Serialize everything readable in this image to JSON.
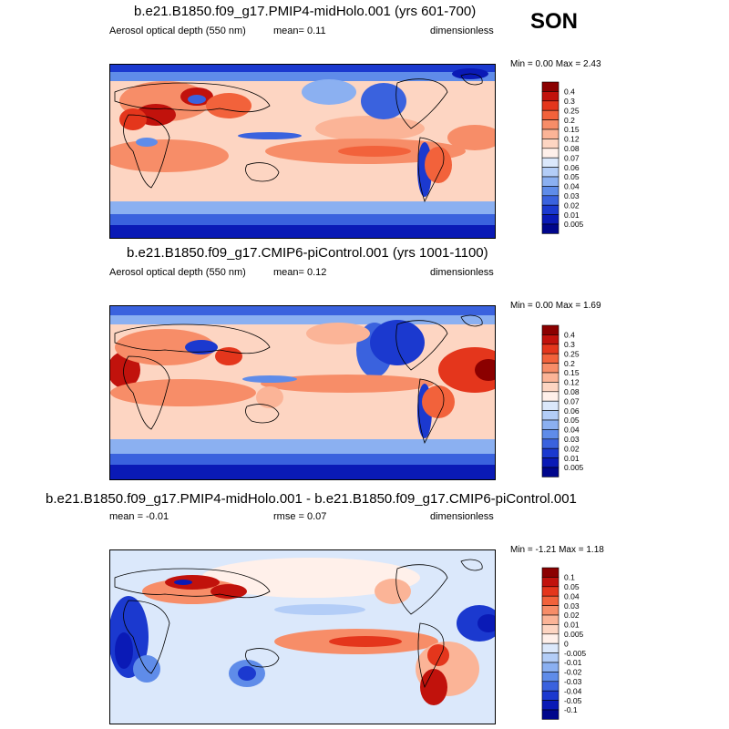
{
  "season": "SON",
  "panels": [
    {
      "title": "b.e21.B1850.f09_g17.PMIP4-midHolo.001 (yrs 601-700)",
      "left_label": "Aerosol optical depth (550 nm)",
      "center_label": "mean=  0.11",
      "right_label": "dimensionless",
      "minmax": "Min =  0.00 Max =  2.43",
      "colorbar": {
        "labels": [
          "0.4",
          "0.3",
          "0.25",
          "0.2",
          "0.15",
          "0.12",
          "0.08",
          "0.07",
          "0.06",
          "0.05",
          "0.04",
          "0.03",
          "0.02",
          "0.01",
          "0.005"
        ],
        "colors": [
          "#8b0000",
          "#c1120c",
          "#e4361c",
          "#f2623b",
          "#f78d68",
          "#fbb497",
          "#fdd5c2",
          "#fff0ea",
          "#dbe8fb",
          "#b3cdf7",
          "#8bb0f1",
          "#5f8ce9",
          "#3a62de",
          "#1b39cf",
          "#0a1ab6",
          "#00068c"
        ]
      }
    },
    {
      "title": "b.e21.B1850.f09_g17.CMIP6-piControl.001 (yrs 1001-1100)",
      "left_label": "Aerosol optical depth (550 nm)",
      "center_label": "mean=  0.12",
      "right_label": "dimensionless",
      "minmax": "Min =  0.00 Max =  1.69",
      "colorbar": {
        "labels": [
          "0.4",
          "0.3",
          "0.25",
          "0.2",
          "0.15",
          "0.12",
          "0.08",
          "0.07",
          "0.06",
          "0.05",
          "0.04",
          "0.03",
          "0.02",
          "0.01",
          "0.005"
        ],
        "colors": [
          "#8b0000",
          "#c1120c",
          "#e4361c",
          "#f2623b",
          "#f78d68",
          "#fbb497",
          "#fdd5c2",
          "#fff0ea",
          "#dbe8fb",
          "#b3cdf7",
          "#8bb0f1",
          "#5f8ce9",
          "#3a62de",
          "#1b39cf",
          "#0a1ab6",
          "#00068c"
        ]
      }
    },
    {
      "title": "b.e21.B1850.f09_g17.PMIP4-midHolo.001 - b.e21.B1850.f09_g17.CMIP6-piControl.001",
      "left_label": "mean =  -0.01",
      "center_label": "rmse =  0.07",
      "right_label": "dimensionless",
      "minmax": "Min =  -1.21 Max =  1.18",
      "colorbar": {
        "labels": [
          "0.1",
          "0.05",
          "0.04",
          "0.03",
          "0.02",
          "0.01",
          "0.005",
          "0",
          "-0.005",
          "-0.01",
          "-0.02",
          "-0.03",
          "-0.04",
          "-0.05",
          "-0.1"
        ],
        "colors": [
          "#8b0000",
          "#c1120c",
          "#e4361c",
          "#f2623b",
          "#f78d68",
          "#fbb497",
          "#fdd5c2",
          "#fff0ea",
          "#dbe8fb",
          "#b3cdf7",
          "#8bb0f1",
          "#5f8ce9",
          "#3a62de",
          "#1b39cf",
          "#0a1ab6",
          "#00068c"
        ]
      }
    }
  ],
  "chart_data": [
    {
      "type": "heatmap",
      "title": "b.e21.B1850.f09_g17.PMIP4-midHolo.001 (yrs 601-700)",
      "variable": "Aerosol optical depth (550 nm)",
      "units": "dimensionless",
      "season": "SON",
      "mean": 0.11,
      "min": 0.0,
      "max": 2.43,
      "levels": [
        0.005,
        0.01,
        0.02,
        0.03,
        0.04,
        0.05,
        0.06,
        0.07,
        0.08,
        0.12,
        0.15,
        0.2,
        0.25,
        0.3,
        0.4
      ]
    },
    {
      "type": "heatmap",
      "title": "b.e21.B1850.f09_g17.CMIP6-piControl.001 (yrs 1001-1100)",
      "variable": "Aerosol optical depth (550 nm)",
      "units": "dimensionless",
      "season": "SON",
      "mean": 0.12,
      "min": 0.0,
      "max": 1.69,
      "levels": [
        0.005,
        0.01,
        0.02,
        0.03,
        0.04,
        0.05,
        0.06,
        0.07,
        0.08,
        0.12,
        0.15,
        0.2,
        0.25,
        0.3,
        0.4
      ]
    },
    {
      "type": "heatmap",
      "title": "b.e21.B1850.f09_g17.PMIP4-midHolo.001 - b.e21.B1850.f09_g17.CMIP6-piControl.001",
      "units": "dimensionless",
      "season": "SON",
      "mean": -0.01,
      "rmse": 0.07,
      "min": -1.21,
      "max": 1.18,
      "levels": [
        -0.1,
        -0.05,
        -0.04,
        -0.03,
        -0.02,
        -0.01,
        -0.005,
        0,
        0.005,
        0.01,
        0.02,
        0.03,
        0.04,
        0.05,
        0.1
      ]
    }
  ]
}
